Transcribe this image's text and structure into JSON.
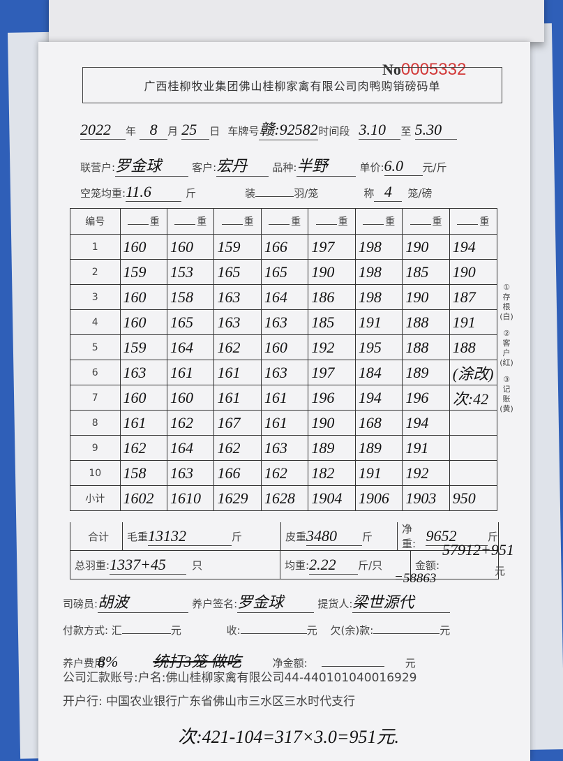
{
  "form_number_prefix": "No",
  "form_number": "0005332",
  "title": "广西桂柳牧业集团佛山桂柳家禽有限公司肉鸭购销磅码单",
  "header": {
    "year": "2022",
    "year_label": "年",
    "month": "8",
    "month_label": "月",
    "day": "25",
    "day_label": "日",
    "plate_label": "车牌号",
    "plate": "赣:92582",
    "time_label": "时间段",
    "time_from": "3.10",
    "to_label": "至",
    "time_to": "5.30",
    "partner_label": "联营户:",
    "partner": "罗金球",
    "customer_label": "客户:",
    "customer": "宏丹",
    "breed_label": "品种:",
    "breed": "半野",
    "price_label": "单价:",
    "price": "6.0",
    "price_unit": "元/斤",
    "cage_label": "空笼均重:",
    "cage_weight": "11.6",
    "cage_unit": "斤",
    "pack_label": "装",
    "pack_unit": "羽/笼",
    "weigh_label": "称",
    "weigh_count": "4",
    "weigh_unit": "笼/磅"
  },
  "table": {
    "index_header": "编号",
    "col_header": "重",
    "rows": [
      {
        "no": "1",
        "values": [
          "160",
          "160",
          "159",
          "166",
          "197",
          "198",
          "190",
          "194"
        ]
      },
      {
        "no": "2",
        "values": [
          "159",
          "153",
          "165",
          "165",
          "190",
          "198",
          "185",
          "190"
        ]
      },
      {
        "no": "3",
        "values": [
          "160",
          "158",
          "163",
          "164",
          "186",
          "198",
          "190",
          "187"
        ]
      },
      {
        "no": "4",
        "values": [
          "160",
          "165",
          "163",
          "163",
          "185",
          "191",
          "188",
          "191"
        ]
      },
      {
        "no": "5",
        "values": [
          "159",
          "164",
          "162",
          "160",
          "192",
          "195",
          "188",
          "188"
        ]
      },
      {
        "no": "6",
        "values": [
          "163",
          "161",
          "161",
          "163",
          "197",
          "184",
          "189",
          "(涂改)"
        ]
      },
      {
        "no": "7",
        "values": [
          "160",
          "160",
          "161",
          "161",
          "196",
          "194",
          "196",
          "次:42"
        ]
      },
      {
        "no": "8",
        "values": [
          "161",
          "162",
          "167",
          "161",
          "190",
          "168",
          "194",
          ""
        ]
      },
      {
        "no": "9",
        "values": [
          "162",
          "164",
          "162",
          "163",
          "189",
          "189",
          "191",
          ""
        ]
      },
      {
        "no": "10",
        "values": [
          "158",
          "163",
          "166",
          "162",
          "182",
          "191",
          "192",
          ""
        ]
      }
    ],
    "subtotal_label": "小计",
    "subtotals": [
      "1602",
      "1610",
      "1629",
      "1628",
      "1904",
      "1906",
      "1903",
      "950"
    ]
  },
  "totals": {
    "total_label": "合计",
    "gross_label": "毛重",
    "gross": "13132",
    "gross_unit": "斤",
    "tare_label": "皮重",
    "tare": "3480",
    "tare_unit": "斤",
    "net_label": "净重:",
    "net": "9652",
    "net_unit": "斤",
    "count_label": "总羽重:",
    "count": "1337+45",
    "count_unit": "只",
    "avg_label": "均重:",
    "avg": "2.22",
    "avg_unit": "斤/只",
    "amount_label": "金额:",
    "amount": "57912+951",
    "amount_unit": "元",
    "amount_result": "=58863"
  },
  "signatures": {
    "weigher_label": "司磅员:",
    "weigher": "胡波",
    "farmer_label": "养户签名:",
    "farmer": "罗金球",
    "picker_label": "提货人:",
    "picker": "梁世源代"
  },
  "payment": {
    "method_label": "付款方式:",
    "remit_label": "汇",
    "yuan": "元",
    "received_label": "收:",
    "owed_label": "欠(余)款:",
    "deduct_label": "养户费用",
    "deduct_hand": "8%",
    "note_hand": "统打3笼 做吃",
    "net_amount_label": "净金额:"
  },
  "account": {
    "label": "公司汇款账号:",
    "name_label": "户名:",
    "name": "佛山桂柳家禽有限公司",
    "number": "44-440101040016929",
    "bank_label": "开户行:",
    "bank": "中国农业银行广东省佛山市三水区三水时代支行"
  },
  "footnote_hand": "次:421-104=317×3.0=951元.",
  "side_copies": [
    "①存根(白)",
    "②客户(红)",
    "③记账(黄)"
  ]
}
